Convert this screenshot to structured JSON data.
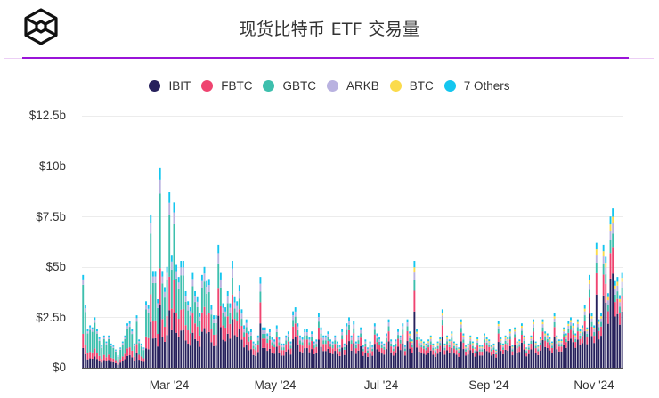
{
  "header": {
    "title": "现货比特币 ETF 交易量",
    "logo_icon": "cube-logo-icon"
  },
  "legend": [
    {
      "label": "IBIT",
      "color": "#27215c"
    },
    {
      "label": "FBTC",
      "color": "#ef4470"
    },
    {
      "label": "GBTC",
      "color": "#3dbfad"
    },
    {
      "label": "ARKB",
      "color": "#b9b2e0"
    },
    {
      "label": "BTC",
      "color": "#fbdb4c"
    },
    {
      "label": "7 Others",
      "color": "#14c6ef"
    }
  ],
  "axes": {
    "y_ticks": [
      "$0",
      "$2.5b",
      "$5b",
      "$7.5b",
      "$10b",
      "$12.5b"
    ],
    "x_ticks": [
      "Mar '24",
      "May '24",
      "Jul '24",
      "Sep '24",
      "Nov '24"
    ]
  },
  "chart_data": {
    "type": "bar",
    "stacked": true,
    "title": "现货比特币 ETF 交易量",
    "xlabel": "",
    "ylabel": "",
    "ylim": [
      0,
      12.5
    ],
    "y_unit": "USD billions",
    "grid": true,
    "legend_position": "top",
    "x_tick_labels": [
      "Mar '24",
      "May '24",
      "Jul '24",
      "Sep '24",
      "Nov '24"
    ],
    "series_names": [
      "IBIT",
      "FBTC",
      "GBTC",
      "ARKB",
      "BTC",
      "7 Others"
    ],
    "approx_daily_totals_billions": [
      4.6,
      3.1,
      1.9,
      2.1,
      2.0,
      2.5,
      1.9,
      1.5,
      1.1,
      1.6,
      1.3,
      1.6,
      1.2,
      1.1,
      0.9,
      0.6,
      1.0,
      1.3,
      1.6,
      2.2,
      2.3,
      1.9,
      1.2,
      2.6,
      1.4,
      1.2,
      1.0,
      3.3,
      3.1,
      7.6,
      4.8,
      4.8,
      3.4,
      9.9,
      4.8,
      4.0,
      5.0,
      8.7,
      5.6,
      8.2,
      5.1,
      4.5,
      5.3,
      5.3,
      3.8,
      3.3,
      3.0,
      4.7,
      3.8,
      3.5,
      2.7,
      4.6,
      5.0,
      4.3,
      4.4,
      3.1,
      2.6,
      2.6,
      6.1,
      4.7,
      3.2,
      3.0,
      3.8,
      3.2,
      5.3,
      3.5,
      3.3,
      4.1,
      2.9,
      2.1,
      2.4,
      1.8,
      1.9,
      1.3,
      1.2,
      1.6,
      4.5,
      2.0,
      2.0,
      1.7,
      1.9,
      1.5,
      1.4,
      2.1,
      1.5,
      1.2,
      1.2,
      1.6,
      1.8,
      1.3,
      2.8,
      3.0,
      2.2,
      1.6,
      1.5,
      1.9,
      1.9,
      1.5,
      1.8,
      1.3,
      1.4,
      2.7,
      2.0,
      1.6,
      1.6,
      1.8,
      1.4,
      1.3,
      1.6,
      1.3,
      1.1,
      1.9,
      1.2,
      2.2,
      2.5,
      1.6,
      2.3,
      1.3,
      1.6,
      2.0,
      1.1,
      1.4,
      1.0,
      1.3,
      1.1,
      2.2,
      1.7,
      1.5,
      1.3,
      1.2,
      1.7,
      2.4,
      1.4,
      1.1,
      1.4,
      1.9,
      1.6,
      2.2,
      1.1,
      2.4,
      1.8,
      1.4,
      5.3,
      1.9,
      1.5,
      1.4,
      1.3,
      1.2,
      1.4,
      1.6,
      1.2,
      1.0,
      1.3,
      1.5,
      2.9,
      1.2,
      1.6,
      1.4,
      1.8,
      1.3,
      1.2,
      1.0,
      2.4,
      1.7,
      1.1,
      1.2,
      1.6,
      1.3,
      1.0,
      1.5,
      1.1,
      1.1,
      1.7,
      1.5,
      1.4,
      1.1,
      1.2,
      0.9,
      2.3,
      1.5,
      1.2,
      1.6,
      1.5,
      1.9,
      1.1,
      2.0,
      1.3,
      1.4,
      2.2,
      1.6,
      1.0,
      1.2,
      1.6,
      2.4,
      1.3,
      1.1,
      1.5,
      2.4,
      1.8,
      1.7,
      1.5,
      1.3,
      2.7,
      1.6,
      1.4,
      1.4,
      2.0,
      1.7,
      2.3,
      2.5,
      2.2,
      1.7,
      2.4,
      1.9,
      2.1,
      3.1,
      2.0,
      4.6,
      2.7,
      2.1,
      6.2,
      2.4,
      2.7,
      6.1,
      5.5,
      3.7,
      7.5,
      7.9,
      4.3,
      4.5,
      3.6,
      4.7
    ]
  }
}
